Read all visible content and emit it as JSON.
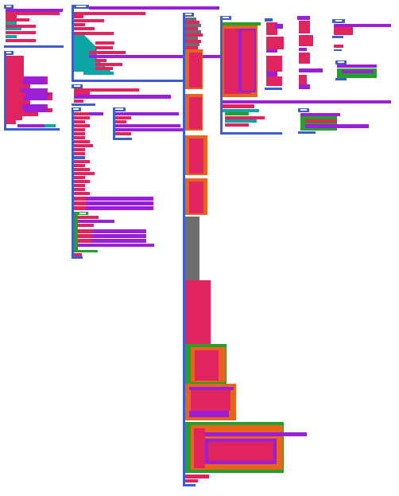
{
  "workspace": {
    "background": "#ffffff",
    "colors": {
      "event": "#3b5fd1",
      "data": "#e0245e",
      "operators": "#9b1fd6",
      "looks": "#0aa6a6",
      "control": "#22a22a",
      "motion": "#e8631c",
      "sensing": "#6e6e6e",
      "reporter_white": "#ffffff"
    }
  },
  "scripts": [
    {
      "name": "script-1",
      "hat_color": "event"
    },
    {
      "name": "script-2",
      "hat_color": "event"
    },
    {
      "name": "script-3",
      "hat_color": "event"
    },
    {
      "name": "script-4",
      "hat_color": "event"
    },
    {
      "name": "script-5",
      "hat_color": "event"
    },
    {
      "name": "script-6",
      "hat_color": "event"
    },
    {
      "name": "script-7",
      "hat_color": "event"
    },
    {
      "name": "script-8",
      "hat_color": "event"
    },
    {
      "name": "script-9",
      "hat_color": "event"
    },
    {
      "name": "script-10",
      "hat_color": "event"
    },
    {
      "name": "script-11",
      "hat_color": "event"
    },
    {
      "name": "script-12",
      "hat_color": "event"
    },
    {
      "name": "script-13",
      "hat_color": "event"
    },
    {
      "name": "script-14",
      "hat_color": "event"
    },
    {
      "name": "script-15",
      "hat_color": "event"
    }
  ]
}
